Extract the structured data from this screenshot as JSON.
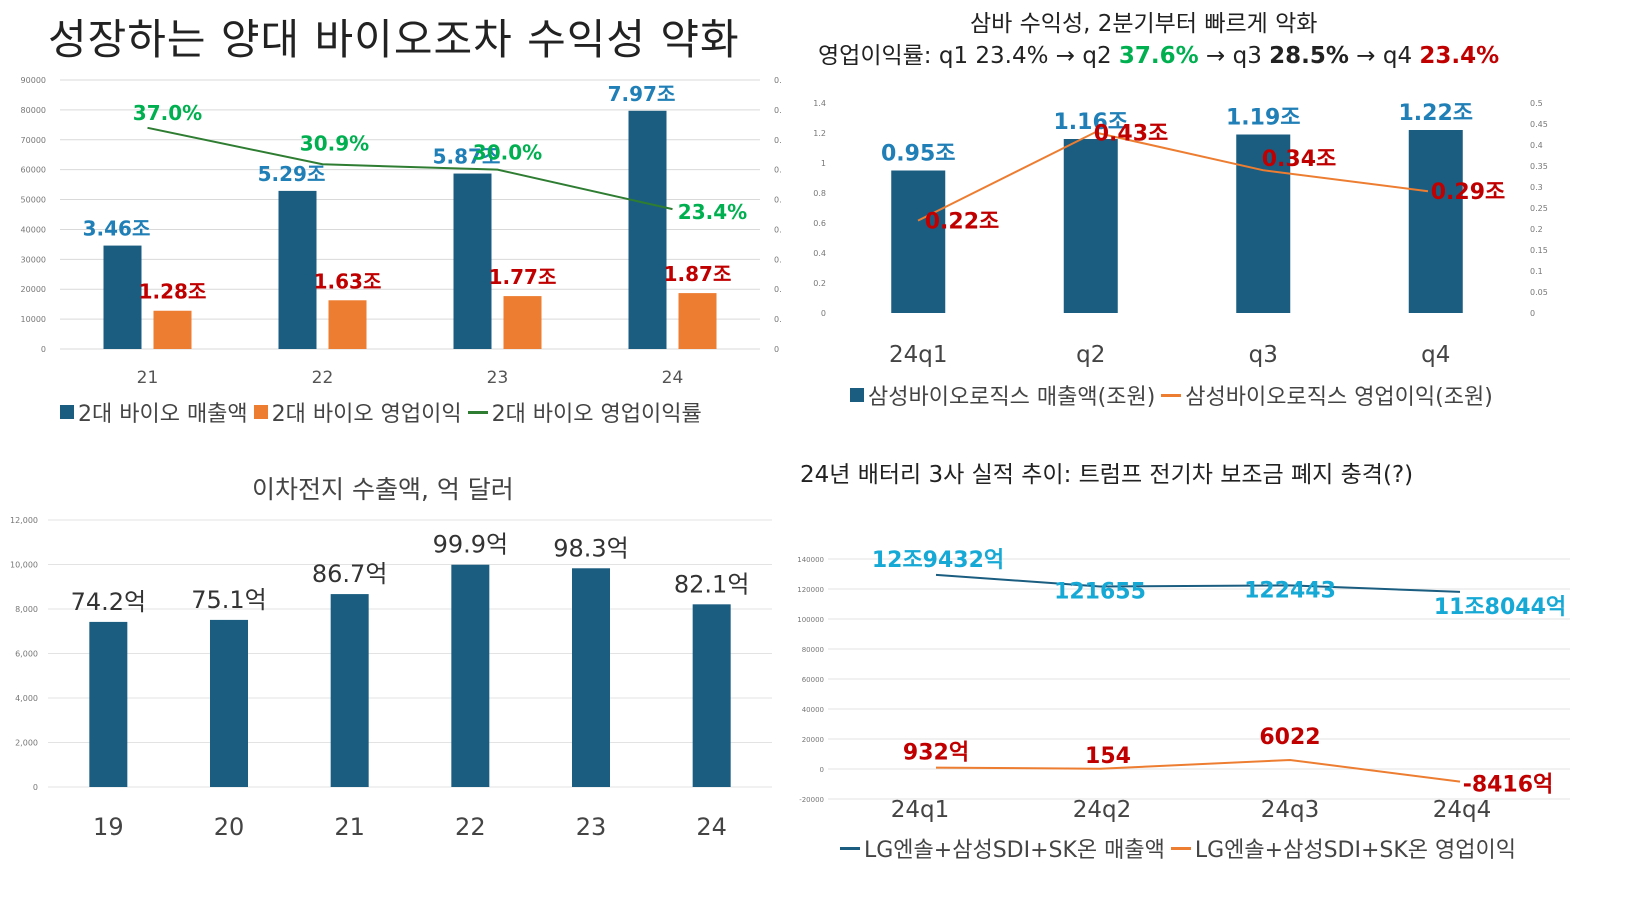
{
  "colors": {
    "bar_blue": "#1a5d80",
    "bar_orange": "#ed7d31",
    "line_green": "#2e7d32",
    "line_orange": "#ed7d31",
    "line_navy": "#1a5d80",
    "label_blue": "#1f7fb6",
    "label_red": "#c00000",
    "label_green": "#00b050",
    "label_cyan": "#16a9d6"
  },
  "chart_data": [
    {
      "id": "bio",
      "type": "bar",
      "title": "성장하는 양대 바이오조차 수익성 약화",
      "categories": [
        "21",
        "22",
        "23",
        "24"
      ],
      "ylim": [
        0,
        90000
      ],
      "y_ticks": [
        "0",
        "10000",
        "20000",
        "30000",
        "40000",
        "50000",
        "60000",
        "70000",
        "80000",
        "90000"
      ],
      "y2_ticks": [
        "0",
        "0.",
        "0.",
        "0.",
        "0.",
        "0.",
        "0.",
        "0.",
        "0.",
        "0."
      ],
      "series": [
        {
          "name": "2대 바이오 매출액",
          "type": "bar",
          "values": [
            34600,
            52900,
            58700,
            79700
          ],
          "labels": [
            "3.46조",
            "5.29조",
            "5.87조",
            "7.97조"
          ]
        },
        {
          "name": "2대 바이오 영업이익",
          "type": "bar",
          "values": [
            12800,
            16300,
            17700,
            18700
          ],
          "labels": [
            "1.28조",
            "1.63조",
            "1.77조",
            "1.87조"
          ]
        },
        {
          "name": "2대 바이오 영업이익률",
          "type": "line",
          "axis": "secondary",
          "values": [
            37.0,
            30.9,
            30.0,
            23.4
          ],
          "labels": [
            "37.0%",
            "30.9%",
            "30.0%",
            "23.4%"
          ]
        }
      ],
      "grid": true,
      "legend_position": "bottom"
    },
    {
      "id": "samsung",
      "type": "bar",
      "title": "삼바 수익성, 2분기부터 빠르게 악화",
      "subtitle_parts": [
        {
          "text": "영업이익률: q1 23.4% → q2 ",
          "style": "normal"
        },
        {
          "text": "37.6%",
          "style": "green"
        },
        {
          "text": " → q3 ",
          "style": "normal"
        },
        {
          "text": "28.5%",
          "style": "bold"
        },
        {
          "text": " → q4 ",
          "style": "normal"
        },
        {
          "text": "23.4%",
          "style": "red"
        }
      ],
      "categories": [
        "24q1",
        "q2",
        "q3",
        "q4"
      ],
      "ylim": [
        0,
        1.4
      ],
      "y_ticks": [
        "0",
        "0.2",
        "0.4",
        "0.6",
        "0.8",
        "1",
        "1.2",
        "1.4"
      ],
      "y2_ticks": [
        "0",
        "0.05",
        "0.1",
        "0.15",
        "0.2",
        "0.25",
        "0.3",
        "0.35",
        "0.4",
        "0.45",
        "0.5"
      ],
      "y2lim": [
        0,
        0.5
      ],
      "series": [
        {
          "name": "삼성바이오로직스 매출액(조원)",
          "type": "bar",
          "values": [
            0.95,
            1.16,
            1.19,
            1.22
          ],
          "labels": [
            "0.95조",
            "1.16조",
            "1.19조",
            "1.22조"
          ]
        },
        {
          "name": "삼성바이오로직스 영업이익(조원)",
          "type": "line",
          "axis": "secondary",
          "values": [
            0.22,
            0.43,
            0.34,
            0.29
          ],
          "labels": [
            "0.22조",
            "0.43조",
            "0.34조",
            "0.29조"
          ]
        }
      ],
      "grid": false,
      "legend_position": "bottom"
    },
    {
      "id": "battery_export",
      "type": "bar",
      "title": "이차전지 수출액, 억 달러",
      "categories": [
        "19",
        "20",
        "21",
        "22",
        "23",
        "24"
      ],
      "ylim": [
        0,
        12000
      ],
      "y_ticks": [
        "0",
        "2,000",
        "4,000",
        "6,000",
        "8,000",
        "10,000",
        "12,000"
      ],
      "series": [
        {
          "name": "",
          "type": "bar",
          "values": [
            7420,
            7510,
            8670,
            9990,
            9830,
            8210
          ],
          "labels": [
            "74.2억",
            "75.1억",
            "86.7억",
            "99.9억",
            "98.3억",
            "82.1억"
          ]
        }
      ],
      "grid": true,
      "legend_position": "none"
    },
    {
      "id": "battery_3",
      "type": "line",
      "title": "24년 배터리 3사 실적 추이: 트럼프 전기차 보조금 폐지 충격(?)",
      "categories": [
        "24q1",
        "24q2",
        "24q3",
        "24q4"
      ],
      "ylim": [
        -20000,
        140000
      ],
      "y_ticks": [
        "-20000",
        "0",
        "20000",
        "40000",
        "60000",
        "80000",
        "100000",
        "120000",
        "140000"
      ],
      "series": [
        {
          "name": "LG엔솔+삼성SDI+SK온 매출액",
          "type": "line",
          "values": [
            129432,
            121655,
            122443,
            118044
          ],
          "labels": [
            "12조9432억",
            "121655",
            "122443",
            "11조8044억"
          ]
        },
        {
          "name": "LG엔솔+삼성SDI+SK온 영업이익",
          "type": "line",
          "values": [
            932,
            154,
            6022,
            -8416
          ],
          "labels": [
            "932억",
            "154",
            "6022",
            "-8416억"
          ]
        }
      ],
      "grid": true,
      "legend_position": "bottom"
    }
  ]
}
